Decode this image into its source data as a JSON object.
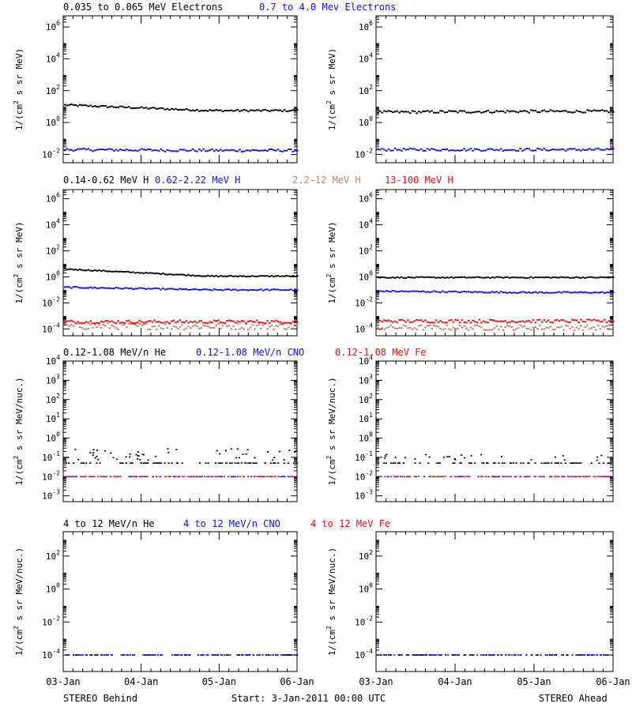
{
  "colors": {
    "black": "#000000",
    "blue": "#1010ee",
    "tan": "#c8826e",
    "red": "#e81010"
  },
  "rows": [
    {
      "titles": [
        {
          "text": "0.035 to 0.065 MeV Electrons",
          "color": "black"
        },
        {
          "text": "0.7 to 4.0 Mev Electrons",
          "color": "blue"
        }
      ],
      "ylabel_main": "1/(cm",
      "ylabel_sup": "2",
      "ylabel_tail": " s sr MeV)",
      "ticks": [
        {
          "base": "10",
          "exp": "6"
        },
        {
          "base": "10",
          "exp": "4"
        },
        {
          "base": "10",
          "exp": "2"
        },
        {
          "base": "10",
          "exp": "0"
        },
        {
          "base": "10",
          "exp": "-2"
        }
      ]
    },
    {
      "titles": [
        {
          "text": "0.14-0.62 MeV H",
          "color": "black"
        },
        {
          "text": "0.62-2.22 MeV H",
          "color": "blue"
        },
        {
          "text": "2.2-12 MeV H",
          "color": "tan"
        },
        {
          "text": "13-100 MeV H",
          "color": "red"
        }
      ],
      "ylabel_main": "1/(cm",
      "ylabel_sup": "2",
      "ylabel_tail": " s sr MeV)",
      "ticks": [
        {
          "base": "10",
          "exp": "6"
        },
        {
          "base": "10",
          "exp": "4"
        },
        {
          "base": "10",
          "exp": "2"
        },
        {
          "base": "10",
          "exp": "0"
        },
        {
          "base": "10",
          "exp": "-2"
        },
        {
          "base": "10",
          "exp": "-4"
        }
      ]
    },
    {
      "titles": [
        {
          "text": "0.12-1.08 MeV/n He",
          "color": "black"
        },
        {
          "text": "0.12-1.08 MeV/n CNO",
          "color": "blue"
        },
        {
          "text": "0.12-1.08 MeV Fe",
          "color": "red"
        }
      ],
      "ylabel_main": "1/(cm",
      "ylabel_sup": "2",
      "ylabel_tail": " s sr MeV/nuc.)",
      "ticks": [
        {
          "base": "10",
          "exp": "4"
        },
        {
          "base": "10",
          "exp": "3"
        },
        {
          "base": "10",
          "exp": "2"
        },
        {
          "base": "10",
          "exp": "1"
        },
        {
          "base": "10",
          "exp": "0"
        },
        {
          "base": "10",
          "exp": "-1"
        },
        {
          "base": "10",
          "exp": "-2"
        },
        {
          "base": "10",
          "exp": "-3"
        }
      ]
    },
    {
      "titles": [
        {
          "text": "4 to 12 MeV/n He",
          "color": "black"
        },
        {
          "text": "4 to 12 MeV/n CNO",
          "color": "blue"
        },
        {
          "text": "4 to 12 MeV Fe",
          "color": "red"
        }
      ],
      "ylabel_main": "1/(cm",
      "ylabel_sup": "2",
      "ylabel_tail": " s sr MeV/nuc.)",
      "ticks": [
        {
          "base": "10",
          "exp": "2"
        },
        {
          "base": "10",
          "exp": "0"
        },
        {
          "base": "10",
          "exp": "-2"
        },
        {
          "base": "10",
          "exp": "-4"
        }
      ]
    }
  ],
  "x_ticks": [
    "03-Jan",
    "04-Jan",
    "05-Jan",
    "06-Jan"
  ],
  "footer": {
    "left": "STEREO Behind",
    "center": "Start:  3-Jan-2011 00:00 UTC",
    "right": "STEREO Ahead"
  },
  "chart_data": [
    {
      "type": "scatter",
      "panel": "row1-left",
      "x_range": [
        "03-Jan",
        "06-Jan"
      ],
      "y_log": true,
      "ylim": [
        0.003,
        5000000
      ],
      "series": [
        {
          "name": "0.035 to 0.065 MeV Electrons",
          "color": "black",
          "log_start": 1.1,
          "log_end": 0.75,
          "jitter": 0.06
        },
        {
          "name": "0.7 to 4.0 Mev Electrons",
          "color": "blue",
          "log_start": -1.7,
          "log_end": -1.75,
          "jitter": 0.08
        }
      ]
    },
    {
      "type": "scatter",
      "panel": "row1-right",
      "x_range": [
        "03-Jan",
        "06-Jan"
      ],
      "y_log": true,
      "ylim": [
        0.003,
        5000000
      ],
      "series": [
        {
          "name": "0.035 to 0.065 MeV Electrons",
          "color": "black",
          "log_start": 0.65,
          "log_end": 0.7,
          "jitter": 0.08
        },
        {
          "name": "0.7 to 4.0 Mev Electrons",
          "color": "blue",
          "log_start": -1.7,
          "log_end": -1.7,
          "jitter": 0.08
        }
      ]
    },
    {
      "type": "scatter",
      "panel": "row2-left",
      "x_range": [
        "03-Jan",
        "06-Jan"
      ],
      "y_log": true,
      "ylim": [
        3e-05,
        5000000
      ],
      "series": [
        {
          "name": "0.14-0.62 MeV H",
          "color": "black",
          "log_start": 0.6,
          "log_end": 0.05,
          "jitter": 0.04
        },
        {
          "name": "0.62-2.22 MeV H",
          "color": "blue",
          "log_start": -0.8,
          "log_end": -1.0,
          "jitter": 0.05
        },
        {
          "name": "2.2-12 MeV H",
          "color": "tan",
          "log_start": -3.8,
          "log_end": -3.8,
          "jitter": 0.25
        },
        {
          "name": "13-100 MeV H",
          "color": "red",
          "log_start": -3.45,
          "log_end": -3.45,
          "jitter": 0.12
        }
      ]
    },
    {
      "type": "scatter",
      "panel": "row2-right",
      "x_range": [
        "03-Jan",
        "06-Jan"
      ],
      "y_log": true,
      "ylim": [
        3e-05,
        5000000
      ],
      "series": [
        {
          "name": "0.14-0.62 MeV H",
          "color": "black",
          "log_start": -0.05,
          "log_end": -0.05,
          "jitter": 0.04
        },
        {
          "name": "0.62-2.22 MeV H",
          "color": "blue",
          "log_start": -1.1,
          "log_end": -1.2,
          "jitter": 0.05
        },
        {
          "name": "2.2-12 MeV H",
          "color": "tan",
          "log_start": -3.9,
          "log_end": -3.9,
          "jitter": 0.2
        },
        {
          "name": "13-100 MeV H",
          "color": "red",
          "log_start": -3.4,
          "log_end": -3.4,
          "jitter": 0.12
        }
      ]
    },
    {
      "type": "scatter",
      "panel": "row3-left",
      "x_range": [
        "03-Jan",
        "06-Jan"
      ],
      "y_log": true,
      "ylim": [
        0.0005,
        10000
      ],
      "series": [
        {
          "name": "0.12-1.08 MeV/n He",
          "color": "black",
          "levels": [
            -1.3,
            -1.0,
            -0.7
          ]
        },
        {
          "name": "0.12-1.08 MeV/n CNO",
          "color": "blue",
          "levels": [
            -2.0
          ]
        },
        {
          "name": "0.12-1.08 MeV Fe",
          "color": "red",
          "levels": [
            -2.0
          ]
        }
      ]
    },
    {
      "type": "scatter",
      "panel": "row3-right",
      "x_range": [
        "03-Jan",
        "06-Jan"
      ],
      "y_log": true,
      "ylim": [
        0.0005,
        10000
      ],
      "series": [
        {
          "name": "0.12-1.08 MeV/n He",
          "color": "black",
          "levels": [
            -1.3,
            -1.0
          ]
        },
        {
          "name": "0.12-1.08 MeV/n CNO",
          "color": "blue",
          "levels": [
            -2.0
          ]
        },
        {
          "name": "0.12-1.08 MeV Fe",
          "color": "red",
          "levels": [
            -2.0
          ]
        }
      ]
    },
    {
      "type": "scatter",
      "panel": "row4-left",
      "x_range": [
        "03-Jan",
        "06-Jan"
      ],
      "y_log": true,
      "ylim": [
        1e-05,
        3000
      ],
      "series": [
        {
          "name": "4 to 12 MeV/n He",
          "color": "black",
          "levels": [
            -4.0
          ]
        },
        {
          "name": "4 to 12 MeV/n CNO",
          "color": "blue",
          "levels": [
            -4.0
          ]
        },
        {
          "name": "4 to 12 MeV Fe",
          "color": "red",
          "levels": []
        }
      ]
    },
    {
      "type": "scatter",
      "panel": "row4-right",
      "x_range": [
        "03-Jan",
        "06-Jan"
      ],
      "y_log": true,
      "ylim": [
        1e-05,
        3000
      ],
      "series": [
        {
          "name": "4 to 12 MeV/n He",
          "color": "black",
          "levels": [
            -4.0
          ]
        },
        {
          "name": "4 to 12 MeV/n CNO",
          "color": "blue",
          "levels": [
            -4.0
          ]
        },
        {
          "name": "4 to 12 MeV Fe",
          "color": "red",
          "levels": []
        }
      ]
    }
  ]
}
